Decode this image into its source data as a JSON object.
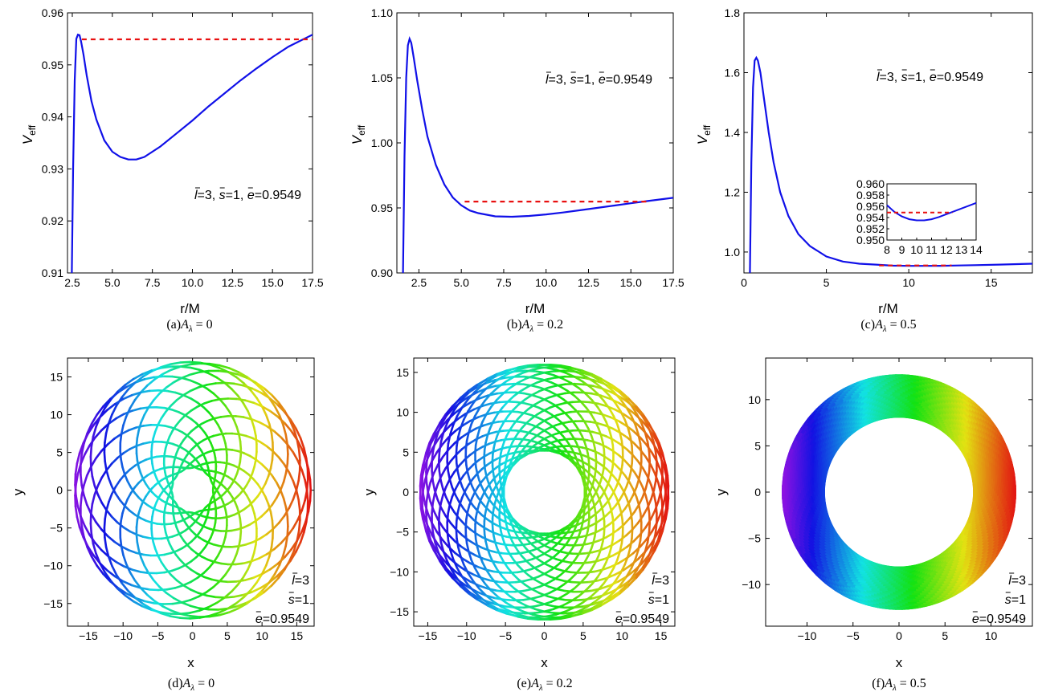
{
  "chart_data": [
    {
      "id": "a",
      "type": "line",
      "caption_prefix": "(a)",
      "caption_param": "A_λ = 0",
      "xlabel": "r/M",
      "ylabel_main": "V",
      "ylabel_sub": "eff",
      "xlim": [
        2.2,
        17.5
      ],
      "ylim": [
        0.91,
        0.96
      ],
      "xticks": [
        "2.5",
        "5.0",
        "7.5",
        "10.0",
        "12.5",
        "15.0",
        "17.5"
      ],
      "yticks": [
        "0.91",
        "0.92",
        "0.93",
        "0.94",
        "0.95",
        "0.96"
      ],
      "annotation": {
        "l": "3",
        "s": "1",
        "e": "0.9549"
      },
      "energy_level": 0.9549,
      "series": [
        {
          "style": "solid",
          "color": "#1010e8",
          "x": [
            2.45,
            2.55,
            2.65,
            2.75,
            2.85,
            2.95,
            3.05,
            3.2,
            3.4,
            3.7,
            4.0,
            4.5,
            5.0,
            5.5,
            6.0,
            6.5,
            7.0,
            8.0,
            9.0,
            10.0,
            11.0,
            12.0,
            13.0,
            14.0,
            15.0,
            16.0,
            17.5
          ],
          "y": [
            0.905,
            0.93,
            0.947,
            0.955,
            0.9558,
            0.9557,
            0.9545,
            0.952,
            0.948,
            0.943,
            0.9395,
            0.9355,
            0.9333,
            0.9323,
            0.9318,
            0.9318,
            0.9323,
            0.9343,
            0.9368,
            0.9393,
            0.942,
            0.9445,
            0.947,
            0.9493,
            0.9515,
            0.9535,
            0.9558
          ]
        },
        {
          "style": "dashed",
          "color": "#e81010",
          "x": [
            3.1,
            17.5
          ],
          "y": [
            0.9549,
            0.9549
          ]
        }
      ]
    },
    {
      "id": "b",
      "type": "line",
      "caption_prefix": "(b)",
      "caption_param": "A_λ = 0.2",
      "xlabel": "r/M",
      "ylabel_main": "V",
      "ylabel_sub": "eff",
      "xlim": [
        1.2,
        17.5
      ],
      "ylim": [
        0.9,
        1.1
      ],
      "xticks": [
        "2.5",
        "5.0",
        "7.5",
        "10.0",
        "12.5",
        "15.0",
        "17.5"
      ],
      "yticks": [
        "0.90",
        "0.95",
        "1.00",
        "1.05",
        "1.10"
      ],
      "annotation": {
        "l": "3",
        "s": "1",
        "e": "0.9549"
      },
      "energy_level": 0.9549,
      "series": [
        {
          "style": "solid",
          "color": "#1010e8",
          "x": [
            1.55,
            1.65,
            1.75,
            1.85,
            1.95,
            2.05,
            2.2,
            2.4,
            2.7,
            3.0,
            3.5,
            4.0,
            4.5,
            5.0,
            5.5,
            6.0,
            7.0,
            8.0,
            9.0,
            10.0,
            11.0,
            12.0,
            13.0,
            14.0,
            15.0,
            16.0,
            17.5
          ],
          "y": [
            0.89,
            0.99,
            1.05,
            1.075,
            1.08,
            1.077,
            1.065,
            1.048,
            1.025,
            1.005,
            0.983,
            0.968,
            0.958,
            0.952,
            0.948,
            0.946,
            0.9435,
            0.9432,
            0.9438,
            0.945,
            0.9465,
            0.9482,
            0.95,
            0.9518,
            0.9536,
            0.9553,
            0.9578
          ]
        },
        {
          "style": "dashed",
          "color": "#e81010",
          "x": [
            5.2,
            16.0
          ],
          "y": [
            0.9549,
            0.9549
          ]
        }
      ]
    },
    {
      "id": "c",
      "type": "line",
      "caption_prefix": "(c)",
      "caption_param": "A_λ = 0.5",
      "xlabel": "r/M",
      "ylabel_main": "V",
      "ylabel_sub": "eff",
      "xlim": [
        0,
        17.5
      ],
      "ylim": [
        0.93,
        1.8
      ],
      "xticks": [
        "0",
        "5",
        "10",
        "15"
      ],
      "yticks": [
        "1.0",
        "1.2",
        "1.4",
        "1.6",
        "1.8"
      ],
      "annotation": {
        "l": "3",
        "s": "1",
        "e": "0.9549"
      },
      "energy_level": 0.9549,
      "series": [
        {
          "style": "solid",
          "color": "#1010e8",
          "x": [
            0.35,
            0.45,
            0.55,
            0.65,
            0.75,
            0.85,
            1.0,
            1.2,
            1.5,
            1.8,
            2.2,
            2.7,
            3.3,
            4.0,
            5.0,
            6.0,
            7.0,
            8.0,
            9.0,
            10.0,
            11.0,
            12.0,
            13.0,
            14.0,
            15.5,
            17.5
          ],
          "y": [
            0.88,
            1.3,
            1.55,
            1.64,
            1.65,
            1.64,
            1.6,
            1.52,
            1.4,
            1.3,
            1.2,
            1.12,
            1.06,
            1.02,
            0.985,
            0.968,
            0.961,
            0.958,
            0.9545,
            0.9535,
            0.9535,
            0.954,
            0.955,
            0.956,
            0.958,
            0.961
          ]
        },
        {
          "style": "dashed",
          "color": "#e81010",
          "x": [
            8.2,
            12.6
          ],
          "y": [
            0.9549,
            0.9549
          ]
        }
      ],
      "inset": {
        "xlim": [
          8,
          14
        ],
        "ylim": [
          0.95,
          0.96
        ],
        "xticks": [
          "8",
          "9",
          "10",
          "11",
          "12",
          "13",
          "14"
        ],
        "yticks": [
          "0.950",
          "0.952",
          "0.954",
          "0.956",
          "0.958",
          "0.960"
        ],
        "series": [
          {
            "style": "solid",
            "color": "#1010e8",
            "x": [
              8.0,
              8.5,
              9.0,
              9.5,
              10.0,
              10.5,
              11.0,
              11.5,
              12.0,
              12.5,
              13.0,
              13.5,
              14.0
            ],
            "y": [
              0.9562,
              0.955,
              0.9542,
              0.9537,
              0.9535,
              0.9535,
              0.9537,
              0.9541,
              0.9546,
              0.9551,
              0.9556,
              0.9561,
              0.9566
            ]
          },
          {
            "style": "dashed",
            "color": "#e81010",
            "x": [
              8.0,
              12.4
            ],
            "y": [
              0.9549,
              0.9549
            ]
          }
        ]
      }
    },
    {
      "id": "d",
      "type": "orbit",
      "caption_prefix": "(d)",
      "caption_param": "A_λ = 0",
      "xlabel": "x",
      "ylabel": "y",
      "xlim": [
        -18,
        17.5
      ],
      "ylim": [
        -18,
        17.5
      ],
      "xticks": [
        -15,
        -10,
        -5,
        0,
        5,
        10,
        15
      ],
      "yticks": [
        -15,
        -10,
        -5,
        0,
        5,
        10,
        15
      ],
      "orbit": {
        "r_min": 2.95,
        "r_max": 17.0,
        "periapsis_advance_deg": 24,
        "loops": 15
      },
      "annotation": {
        "l": "3",
        "s": "1",
        "e": "0.9549"
      }
    },
    {
      "id": "e",
      "type": "orbit",
      "caption_prefix": "(e)",
      "caption_param": "A_λ = 0.2",
      "xlabel": "x",
      "ylabel": "y",
      "xlim": [
        -16.8,
        16.8
      ],
      "ylim": [
        -16.8,
        16.8
      ],
      "xticks": [
        -15,
        -10,
        -5,
        0,
        5,
        10,
        15
      ],
      "yticks": [
        -15,
        -10,
        -5,
        0,
        5,
        10,
        15
      ],
      "orbit": {
        "r_min": 5.2,
        "r_max": 16.0,
        "periapsis_advance_deg": 15,
        "loops": 24
      },
      "annotation": {
        "l": "3",
        "s": "1",
        "e": "0.9549"
      }
    },
    {
      "id": "f",
      "type": "orbit",
      "caption_prefix": "(f)",
      "caption_param": "A_λ = 0.5",
      "xlabel": "x",
      "ylabel": "y",
      "xlim": [
        -14.5,
        14.5
      ],
      "ylim": [
        -14.5,
        14.5
      ],
      "xticks": [
        -10,
        -5,
        0,
        5,
        10
      ],
      "yticks": [
        -10,
        -5,
        0,
        5,
        10
      ],
      "orbit": {
        "r_min": 8.2,
        "r_max": 12.6,
        "periapsis_advance_deg": 6,
        "loops": 60
      },
      "annotation": {
        "l": "3",
        "s": "1",
        "e": "0.9549"
      }
    }
  ]
}
